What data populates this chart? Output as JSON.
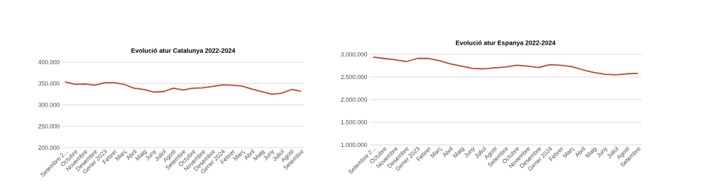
{
  "chart_data": [
    {
      "type": "line",
      "title": "Evolució atur Catalunya 2022-2024",
      "categories": [
        "Setembre 2...",
        "Octubre",
        "Novembre",
        "Desembre",
        "Gener 2023",
        "Febrer",
        "Març",
        "Abril",
        "Maig",
        "Juny",
        "Juliol",
        "Agost",
        "Setembre",
        "Octubre",
        "Novembre",
        "Desembre",
        "Gener 2024",
        "Febrer",
        "Març",
        "Abril",
        "Maig",
        "Juny",
        "Juliol",
        "Agost",
        "Setembre"
      ],
      "series": [
        {
          "color": "#c0462a",
          "values": [
            354000,
            348000,
            349000,
            346000,
            352000,
            352000,
            348000,
            339000,
            336000,
            330000,
            331000,
            339000,
            335000,
            339000,
            340000,
            343000,
            347000,
            346000,
            344000,
            337000,
            331000,
            325000,
            327000,
            336000,
            332000
          ]
        }
      ],
      "ylim": [
        200000,
        400000
      ],
      "yticks": [
        {
          "value": 200000,
          "label": "200.000"
        },
        {
          "value": 250000,
          "label": "250.000"
        },
        {
          "value": 300000,
          "label": "300.000"
        },
        {
          "value": 350000,
          "label": "350.000"
        },
        {
          "value": 400000,
          "label": "400.000"
        }
      ],
      "grid": "y"
    },
    {
      "type": "line",
      "title": "Evolució atur Espanya 2022-2024",
      "categories": [
        "Setembre 2...",
        "Octubre",
        "Novembre",
        "Desembre",
        "Gener 2023",
        "Febrer",
        "Març",
        "Abril",
        "Maig",
        "Juny",
        "Juliol",
        "Agost",
        "Setembre",
        "Octubre",
        "Novembre",
        "Desembre",
        "Gener 2024",
        "Febrer",
        "Març",
        "Abril",
        "Maig",
        "Juny",
        "Juliol",
        "Agost",
        "Setembre"
      ],
      "series": [
        {
          "color": "#c0462a",
          "values": [
            2940000,
            2910000,
            2880000,
            2840000,
            2910000,
            2910000,
            2860000,
            2790000,
            2740000,
            2690000,
            2680000,
            2700000,
            2720000,
            2760000,
            2740000,
            2710000,
            2770000,
            2760000,
            2730000,
            2660000,
            2600000,
            2560000,
            2550000,
            2570000,
            2580000
          ]
        }
      ],
      "ylim": [
        1000000,
        3000000
      ],
      "yticks": [
        {
          "value": 1000000,
          "label": "1.000.000"
        },
        {
          "value": 1500000,
          "label": "1.500.000"
        },
        {
          "value": 2000000,
          "label": "2.000.000"
        },
        {
          "value": 2500000,
          "label": "2.500.000"
        },
        {
          "value": 3000000,
          "label": "3.000.000"
        }
      ],
      "grid": "y"
    }
  ]
}
